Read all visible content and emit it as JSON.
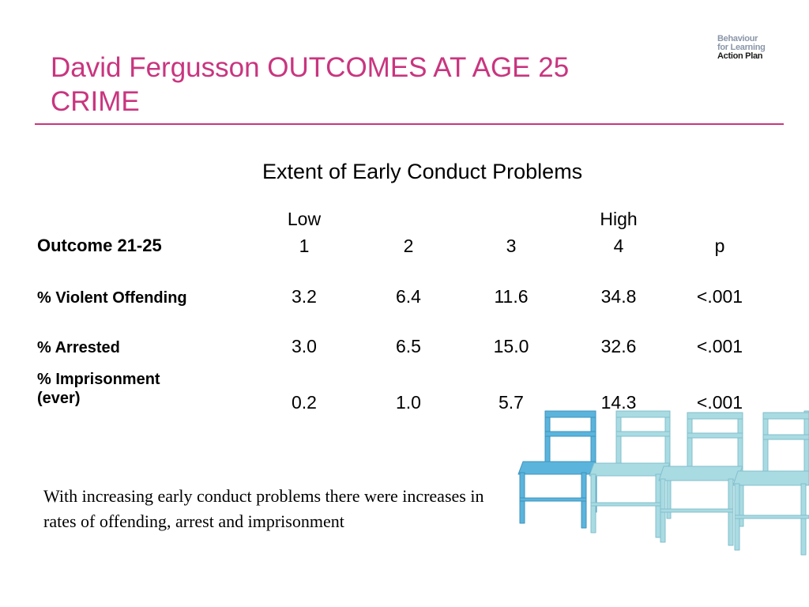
{
  "title": {
    "line1": "David Fergusson OUTCOMES AT AGE 25",
    "line2": "CRIME"
  },
  "logo": {
    "line1": "Behaviour",
    "line2": "for Learning",
    "line3": "Action Plan"
  },
  "subheading": "Extent of Early Conduct Problems",
  "table": {
    "scale_low": "Low",
    "scale_high": "High",
    "header_label": "Outcome 21-25",
    "columns": [
      "1",
      "2",
      "3",
      "4",
      "p"
    ],
    "rows": [
      {
        "label": "% Violent Offending",
        "values": [
          "3.2",
          "6.4",
          "11.6",
          "34.8",
          "<.001"
        ]
      },
      {
        "label": "% Arrested",
        "values": [
          "3.0",
          "6.5",
          "15.0",
          "32.6",
          "<.001"
        ]
      },
      {
        "label_line1": "% Imprisonment",
        "label_line2": "(ever)",
        "values": [
          "0.2",
          "1.0",
          "5.7",
          "14.3",
          "<.001"
        ]
      }
    ]
  },
  "summary": "With increasing early conduct problems there were increases in rates of offending, arrest and imprisonment",
  "colors": {
    "title": "#c9357f",
    "rule": "#c9357f",
    "chair_blue": "#5bb4dc",
    "chair_pale": "#a9dbe3"
  },
  "decoration": {
    "chairs_icon": "row-of-chairs"
  }
}
